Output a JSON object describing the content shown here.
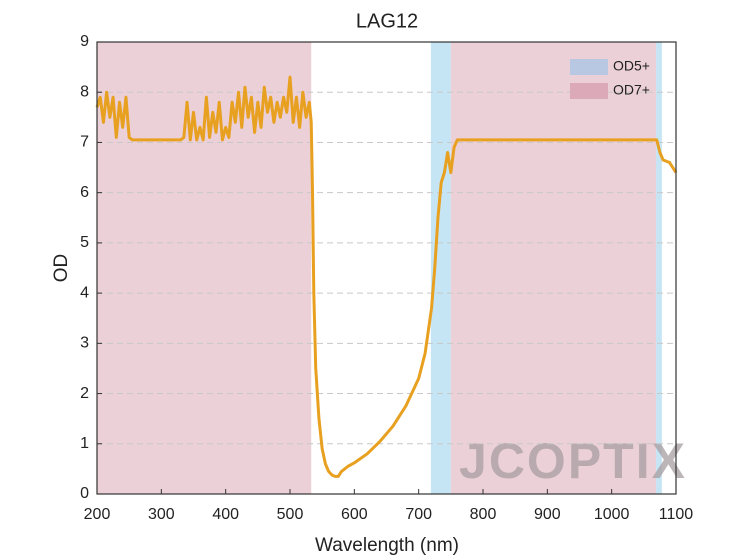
{
  "chart_data": {
    "type": "line",
    "title": "LAG12",
    "xlabel": "Wavelength (nm)",
    "ylabel": "OD",
    "watermark": "JCOPTIX",
    "xlim": [
      200,
      1100
    ],
    "xticks": [
      200,
      300,
      400,
      500,
      600,
      700,
      800,
      900,
      1000,
      1100
    ],
    "ylim": [
      0,
      9
    ],
    "yticks": [
      0,
      1,
      2,
      3,
      4,
      5,
      6,
      7,
      8,
      9
    ],
    "grid": true,
    "legend": "upper right",
    "bands": [
      {
        "name": "OD5+",
        "color": "#c5e5f5",
        "legend_color": "#b9c8e2",
        "ranges": [
          [
            719,
            750
          ],
          [
            1069,
            1078
          ]
        ]
      },
      {
        "name": "OD7+",
        "color": "#ebd0d7",
        "legend_color": "#dba9b7",
        "ranges": [
          [
            200,
            533
          ],
          [
            750,
            1069
          ]
        ]
      }
    ],
    "x": [
      200,
      205,
      210,
      215,
      220,
      225,
      230,
      235,
      240,
      245,
      250,
      255,
      260,
      270,
      280,
      290,
      300,
      310,
      320,
      330,
      335,
      340,
      345,
      350,
      355,
      360,
      365,
      370,
      375,
      380,
      385,
      390,
      395,
      400,
      405,
      410,
      415,
      420,
      425,
      430,
      435,
      440,
      445,
      450,
      455,
      460,
      465,
      470,
      475,
      480,
      485,
      490,
      495,
      500,
      505,
      510,
      515,
      520,
      525,
      530,
      533,
      535,
      537,
      540,
      545,
      550,
      555,
      560,
      565,
      570,
      575,
      580,
      585,
      590,
      600,
      620,
      640,
      660,
      680,
      700,
      710,
      720,
      725,
      730,
      735,
      740,
      745,
      750,
      755,
      760,
      800,
      900,
      1000,
      1070,
      1075,
      1080,
      1090,
      1100
    ],
    "series": [
      {
        "color": "#e8a020",
        "values": [
          7.7,
          7.9,
          7.4,
          8.0,
          7.5,
          7.9,
          7.1,
          7.8,
          7.3,
          7.9,
          7.1,
          7.05,
          7.05,
          7.05,
          7.05,
          7.05,
          7.05,
          7.05,
          7.05,
          7.05,
          7.1,
          7.8,
          7.05,
          7.6,
          7.05,
          7.3,
          7.05,
          7.9,
          7.1,
          7.6,
          7.2,
          7.8,
          7.05,
          7.3,
          7.1,
          7.8,
          7.4,
          8.0,
          7.3,
          8.1,
          7.5,
          7.9,
          7.2,
          7.8,
          7.3,
          8.1,
          7.6,
          7.9,
          7.4,
          7.8,
          7.5,
          7.9,
          7.6,
          8.3,
          7.4,
          7.9,
          7.3,
          8.0,
          7.5,
          7.8,
          7.4,
          6.0,
          4.0,
          2.5,
          1.5,
          0.9,
          0.6,
          0.45,
          0.38,
          0.35,
          0.35,
          0.45,
          0.5,
          0.55,
          0.62,
          0.8,
          1.05,
          1.35,
          1.75,
          2.3,
          2.8,
          3.7,
          4.5,
          5.5,
          6.2,
          6.4,
          6.8,
          6.4,
          6.9,
          7.05,
          7.05,
          7.05,
          7.05,
          7.05,
          6.8,
          6.65,
          6.6,
          6.4
        ]
      }
    ]
  }
}
